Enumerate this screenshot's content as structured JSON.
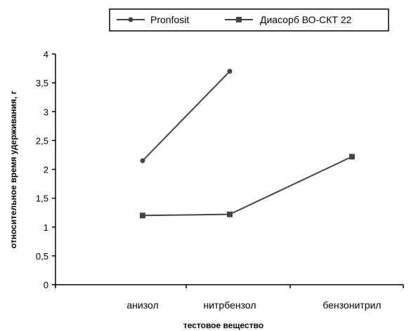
{
  "chart_data": {
    "type": "line",
    "categories": [
      "анизол",
      "нитрбензол",
      "бензонитрил"
    ],
    "series": [
      {
        "name": "Pronfosit",
        "marker": "diamond",
        "color": "#444444",
        "values": [
          2.15,
          3.7,
          null
        ]
      },
      {
        "name": "Диасорб ВО-СКТ 22",
        "marker": "square",
        "color": "#444444",
        "values": [
          1.2,
          1.22,
          2.22
        ]
      }
    ],
    "ylim": [
      0,
      4
    ],
    "yticks": [
      "0",
      "0,5",
      "1",
      "1,5",
      "2",
      "2,5",
      "3",
      "3,5",
      "4"
    ],
    "ytick_values": [
      0,
      0.5,
      1,
      1.5,
      2,
      2.5,
      3,
      3.5,
      4
    ],
    "xlabel": "тестовое вещество",
    "ylabel": "относительное время удерживания, r",
    "legend_position": "top",
    "grid": false
  }
}
